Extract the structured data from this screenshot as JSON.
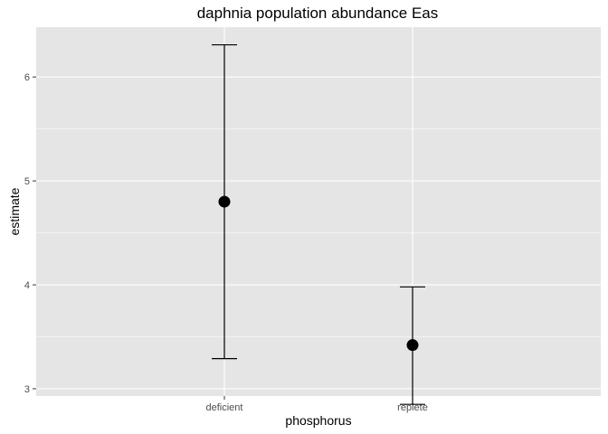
{
  "chart_data": {
    "type": "scatter",
    "title": "daphnia population abundance Eas",
    "xlabel": "phosphorus",
    "ylabel": "estimate",
    "categories": [
      "deficient",
      "replete"
    ],
    "ylim": [
      2.93,
      6.48
    ],
    "yticks": [
      "3",
      "4",
      "5",
      "6"
    ],
    "grid": true,
    "points": [
      {
        "category": "deficient",
        "estimate": 4.8,
        "lower": 3.29,
        "upper": 6.31
      },
      {
        "category": "replete",
        "estimate": 3.42,
        "lower": 2.85,
        "upper": 3.98
      }
    ],
    "colors": {
      "panel": "#e5e5e5",
      "grid": "#ffffff",
      "point": "#000000",
      "errorbar": "#000000"
    }
  }
}
